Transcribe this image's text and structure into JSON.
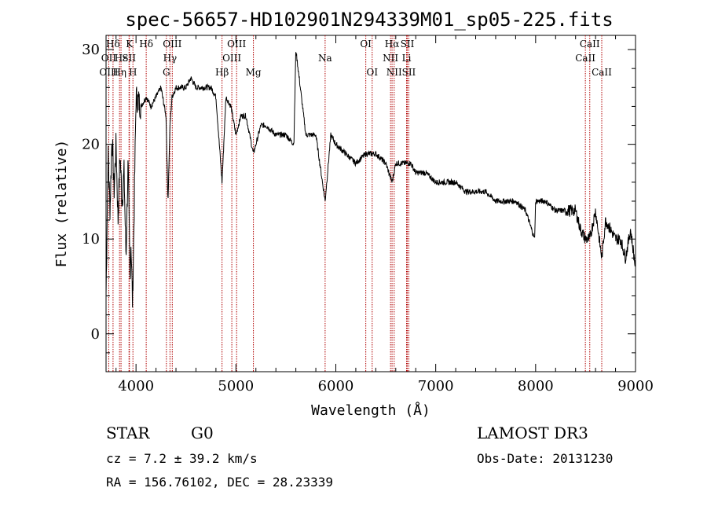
{
  "chart_data": {
    "type": "line",
    "title": "spec-56657-HD102901N294339M01_sp05-225.fits",
    "xlabel": "Wavelength (Å)",
    "ylabel": "Flux (relative)",
    "xlim": [
      3700,
      9000
    ],
    "ylim": [
      -4,
      31.5
    ],
    "x_ticks": [
      4000,
      5000,
      6000,
      7000,
      8000,
      9000
    ],
    "y_ticks": [
      0,
      10,
      20,
      30
    ],
    "colors": {
      "spectrum": "#000000",
      "line_markers": "#b00000"
    },
    "series": [
      {
        "x": [
          3700,
          3720,
          3740,
          3760,
          3780,
          3800,
          3820,
          3840,
          3860,
          3880,
          3900,
          3920,
          3940,
          3950,
          3965,
          3980,
          4000,
          4050,
          4102,
          4150,
          4200,
          4250,
          4300,
          4320,
          4340,
          4360,
          4400,
          4450,
          4500,
          4550,
          4600,
          4650,
          4700,
          4750,
          4800,
          4861,
          4900,
          4950,
          5000,
          5050,
          5100,
          5175,
          5250,
          5300,
          5400,
          5500,
          5580,
          5600,
          5700,
          5800,
          5893,
          5950,
          6000,
          6100,
          6200,
          6300,
          6400,
          6500,
          6563,
          6600,
          6700,
          6750,
          6800,
          6900,
          7000,
          7100,
          7200,
          7300,
          7400,
          7500,
          7600,
          7700,
          7800,
          7900,
          7990,
          8000,
          8050,
          8100,
          8200,
          8300,
          8400,
          8450,
          8498,
          8542,
          8600,
          8662,
          8700,
          8750,
          8800,
          8850,
          8900,
          8950,
          9000
        ],
        "y": [
          4,
          19,
          13,
          21,
          15,
          20,
          12,
          19,
          14,
          17,
          8,
          18,
          6,
          10,
          3,
          12,
          25,
          24,
          25,
          24,
          25,
          26,
          23,
          14,
          22,
          25,
          26,
          26,
          26,
          27,
          26,
          26,
          26,
          26,
          25,
          16,
          25,
          24,
          21,
          23,
          23,
          19,
          22,
          22,
          21,
          21,
          20,
          30,
          21,
          21,
          14,
          21,
          20,
          19,
          18,
          19,
          19,
          18,
          16,
          18,
          18,
          18,
          17,
          17,
          16,
          16,
          16,
          15,
          15,
          15,
          14,
          14,
          14,
          13,
          10,
          14,
          14,
          14,
          13,
          13,
          13,
          11,
          10,
          10,
          13,
          8,
          12,
          11,
          10,
          10,
          8,
          11,
          7
        ],
        "approximate": true
      }
    ],
    "spectral_lines": [
      {
        "label": "Hδ",
        "x": 3770,
        "row": 0
      },
      {
        "label": "OII",
        "x": 3727,
        "row": 1
      },
      {
        "label": "OIII",
        "x": 3727,
        "row": 2
      },
      {
        "label": "Hε",
        "x": 3850,
        "row": 1
      },
      {
        "label": "Hη",
        "x": 3835,
        "row": 2
      },
      {
        "label": "K",
        "x": 3934,
        "row": 0
      },
      {
        "label": "SII",
        "x": 3930,
        "row": 1
      },
      {
        "label": "H",
        "x": 3969,
        "row": 2
      },
      {
        "label": "Hδ",
        "x": 4102,
        "row": 0
      },
      {
        "label": "OIII",
        "x": 4363,
        "row": 0
      },
      {
        "label": "Hγ",
        "x": 4340,
        "row": 1
      },
      {
        "label": "G",
        "x": 4304,
        "row": 2
      },
      {
        "label": "Hβ",
        "x": 4861,
        "row": 2
      },
      {
        "label": "OIII",
        "x": 5007,
        "row": 0
      },
      {
        "label": "OIII",
        "x": 4959,
        "row": 1
      },
      {
        "label": "Mg",
        "x": 5175,
        "row": 2
      },
      {
        "label": "Na",
        "x": 5893,
        "row": 1
      },
      {
        "label": "OI",
        "x": 6300,
        "row": 0
      },
      {
        "label": "OI",
        "x": 6364,
        "row": 2
      },
      {
        "label": "Hα",
        "x": 6563,
        "row": 0
      },
      {
        "label": "SII",
        "x": 6716,
        "row": 0
      },
      {
        "label": "NII",
        "x": 6548,
        "row": 1
      },
      {
        "label": "Li",
        "x": 6708,
        "row": 1
      },
      {
        "label": "NII",
        "x": 6584,
        "row": 2
      },
      {
        "label": "SII",
        "x": 6731,
        "row": 2
      },
      {
        "label": "CaII",
        "x": 8542,
        "row": 0
      },
      {
        "label": "CaII",
        "x": 8498,
        "row": 1
      },
      {
        "label": "CaII",
        "x": 8662,
        "row": 2
      }
    ]
  },
  "info": {
    "object_class": "STAR",
    "subclass": "G0",
    "survey": "LAMOST DR3",
    "cz": "cz = 7.2 ± 39.2 km/s",
    "obs_date": "Obs-Date: 20131230",
    "coords": "RA = 156.76102, DEC =  28.23339"
  }
}
